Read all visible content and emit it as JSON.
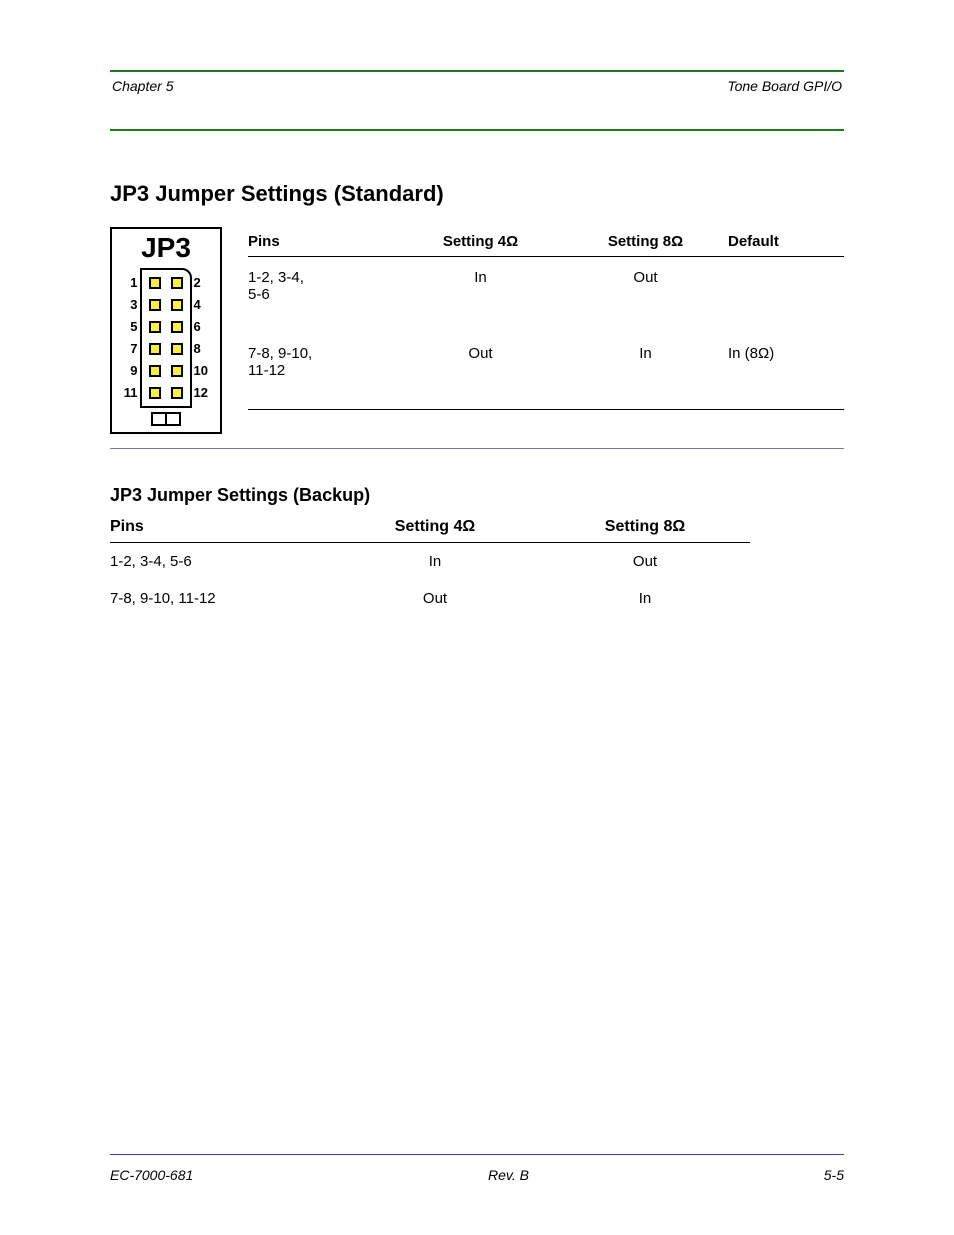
{
  "colors": {
    "green_rule": "#1e7a1e",
    "blue_rule": "#3a3acb",
    "pad_fill": "#f7f33a",
    "pad_border": "#000000",
    "text": "#000000",
    "background": "#ffffff"
  },
  "typography": {
    "base_family": "Arial, Helvetica, sans-serif",
    "section_title_pt": 22,
    "table_title_pt": 18,
    "body_pt": 15,
    "header_footer_pt": 14,
    "jumper_label_pt": 28
  },
  "header": {
    "left": "Chapter 5",
    "right": "Tone Board GPI/O"
  },
  "section_title": "JP3 Jumper Settings (Standard)",
  "jumper": {
    "label": "JP3",
    "rows": 6,
    "cols": 2,
    "pin_numbers_left": [
      "1",
      "3",
      "5",
      "7",
      "9",
      "11"
    ],
    "pin_numbers_right": [
      "2",
      "4",
      "6",
      "8",
      "10",
      "12"
    ],
    "pad_fill": "#f7f33a",
    "pad_border": "#000000",
    "block_border": "#000000",
    "corner_notch": "top-right"
  },
  "table1": {
    "columns": [
      "Pins",
      "Setting 4Ω",
      "Setting 8Ω",
      "Default"
    ],
    "rows": [
      {
        "pins": "1-2, 3-4,\n5-6",
        "four": "In",
        "eight": "Out",
        "default": ""
      },
      {
        "pins": "7-8, 9-10,\n11-12",
        "four": "Out",
        "eight": "In",
        "default": "In (8Ω)"
      }
    ]
  },
  "table2": {
    "title": "JP3 Jumper Settings (Backup)",
    "columns": [
      "Pins",
      "Setting 4Ω",
      "Setting 8Ω"
    ],
    "rows": [
      {
        "pins": "1-2, 3-4, 5-6",
        "four": "In",
        "eight": "Out"
      },
      {
        "pins": "7-8, 9-10, 11-12",
        "four": "Out",
        "eight": "In"
      }
    ]
  },
  "footer": {
    "left": "EC-7000-681",
    "center": "Rev. B",
    "right": "5-5"
  }
}
